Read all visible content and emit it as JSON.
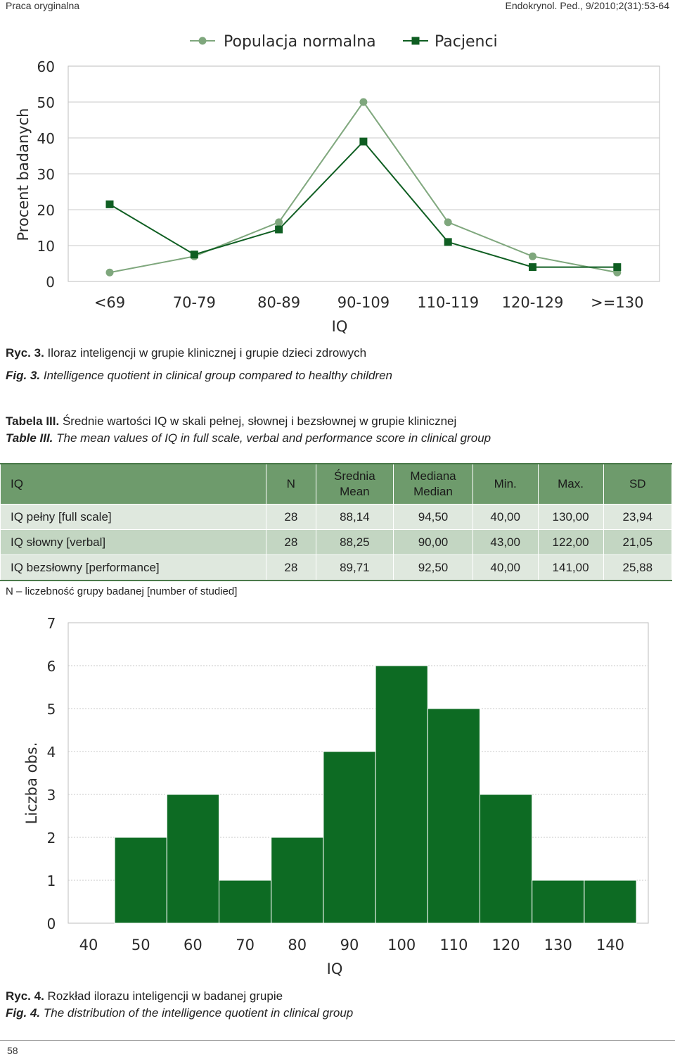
{
  "header": {
    "left": "Praca oryginalna",
    "right": "Endokrynol. Ped., 9/2010;2(31):53-64"
  },
  "figure3": {
    "caption_pl_label": "Ryc. 3.",
    "caption_pl_text": "Iloraz inteligencji w grupie klinicznej i grupie dzieci zdrowych",
    "caption_en_label": "Fig. 3.",
    "caption_en_text": "Intelligence quotient in clinical group compared to healthy children"
  },
  "table3": {
    "title_pl_label": "Tabela III.",
    "title_pl_text": "Średnie wartości IQ w skali pełnej, słownej i bezsłownej w grupie klinicznej",
    "title_en_label": "Table III.",
    "title_en_text": "The mean values of IQ in full scale, verbal and performance score in clinical group",
    "headers": {
      "iq": "IQ",
      "n": "N",
      "mean_pl": "Średnia",
      "mean_en": "Mean",
      "median_pl": "Mediana",
      "median_en": "Median",
      "min": "Min.",
      "max": "Max.",
      "sd": "SD"
    },
    "rows": [
      {
        "label": "IQ pełny [full scale]",
        "n": "28",
        "mean": "88,14",
        "median": "94,50",
        "min": "40,00",
        "max": "130,00",
        "sd": "23,94"
      },
      {
        "label": "IQ słowny [verbal]",
        "n": "28",
        "mean": "88,25",
        "median": "90,00",
        "min": "43,00",
        "max": "122,00",
        "sd": "21,05"
      },
      {
        "label": "IQ bezsłowny [performance]",
        "n": "28",
        "mean": "89,71",
        "median": "92,50",
        "min": "40,00",
        "max": "141,00",
        "sd": "25,88"
      }
    ],
    "note": "N – liczebność grupy badanej [number of studied]"
  },
  "figure4": {
    "caption_pl_label": "Ryc. 4.",
    "caption_pl_text": "Rozkład ilorazu inteligencji w badanej grupie",
    "caption_en_label": "Fig. 4.",
    "caption_en_text": "The distribution of the intelligence quotient in clinical group"
  },
  "page_number": "58",
  "chart_data": [
    {
      "type": "line",
      "xlabel": "IQ",
      "ylabel": "Procent badanych",
      "categories": [
        "<69",
        "70-79",
        "80-89",
        "90-109",
        "110-119",
        "120-129",
        ">=130"
      ],
      "ylim": [
        0,
        60
      ],
      "yticks": [
        0,
        10,
        20,
        30,
        40,
        50,
        60
      ],
      "grid": true,
      "legend_position": "top",
      "series": [
        {
          "name": "Populacja normalna",
          "values": [
            2.5,
            7,
            16.5,
            50,
            16.5,
            7,
            2.5
          ],
          "color": "#7fa77d",
          "marker": "circle"
        },
        {
          "name": "Pacjenci",
          "values": [
            21.5,
            7.5,
            14.5,
            39,
            11,
            4,
            4
          ],
          "color": "#0f5e22",
          "marker": "square"
        }
      ]
    },
    {
      "type": "bar",
      "subtype": "histogram",
      "xlabel": "IQ",
      "ylabel": "Liczba obs.",
      "bin_edges": [
        45,
        55,
        65,
        75,
        85,
        95,
        105,
        115,
        125,
        135,
        145
      ],
      "values": [
        2,
        3,
        1,
        2,
        4,
        6,
        5,
        3,
        1,
        1
      ],
      "xticks": [
        40,
        50,
        60,
        70,
        80,
        90,
        100,
        110,
        120,
        130,
        140
      ],
      "xlim": [
        40,
        145
      ],
      "ylim": [
        0,
        7
      ],
      "yticks": [
        0,
        1,
        2,
        3,
        4,
        5,
        6,
        7
      ],
      "grid": true,
      "color": "#0d6b23"
    }
  ]
}
